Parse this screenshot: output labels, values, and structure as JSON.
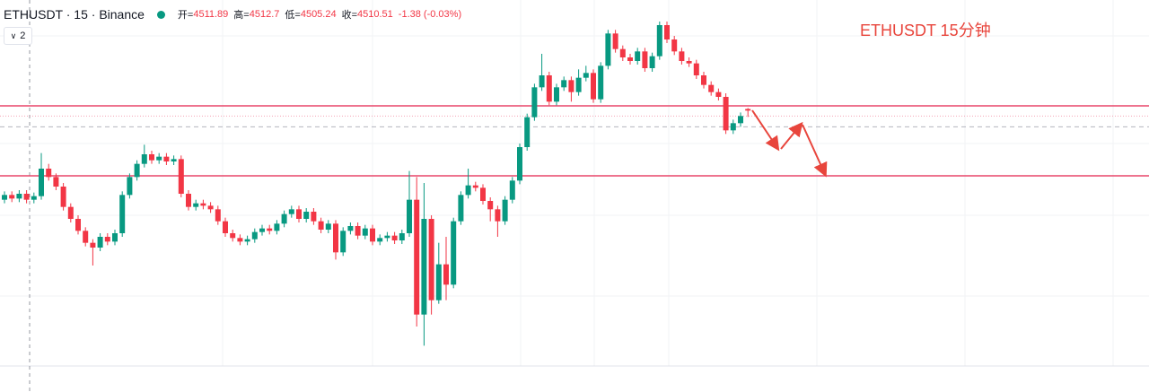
{
  "header": {
    "symbol": "ETHUSDT · 15 · Binance",
    "open_label": "开=",
    "high_label": "高=",
    "low_label": "低=",
    "close_label": "收=",
    "change": "-1.38 (-0.03%)",
    "collapse": "2"
  },
  "chart_data": {
    "type": "candlestick",
    "annotation": "ETHUSDT 15分钟",
    "ylim": [
      4297,
      4603
    ],
    "up_color": "#089981",
    "down_color": "#f23645",
    "open": [
      4436,
      4440,
      4437,
      4441,
      4436,
      4439,
      4462,
      4455,
      4447,
      4430,
      4420,
      4410,
      4400,
      4396,
      4405,
      4401,
      4408,
      4440,
      4455,
      4466,
      4474,
      4469,
      4472,
      4468,
      4470,
      4441,
      4430,
      4433,
      4431,
      4428,
      4418,
      4408,
      4404,
      4401,
      4403,
      4409,
      4412,
      4410,
      4416,
      4424,
      4428,
      4420,
      4426,
      4418,
      4411,
      4416,
      4392,
      4410,
      4414,
      4406,
      4412,
      4401,
      4404,
      4406,
      4402,
      4408,
      4436,
      4340,
      4420,
      4352,
      4382,
      4365,
      4418,
      4440,
      4448,
      4446,
      4435,
      4428,
      4418,
      4436,
      4452,
      4480,
      4505,
      4530,
      4540,
      4518,
      4530,
      4536,
      4526,
      4538,
      4542,
      4520,
      4548,
      4575,
      4562,
      4555,
      4552,
      4560,
      4546,
      4556,
      4582,
      4570,
      4560,
      4552,
      4550,
      4540,
      4532,
      4526,
      4522,
      4494,
      4500,
      4511.89
    ],
    "high": [
      4443,
      4443,
      4444,
      4444,
      4442,
      4475,
      4466,
      4458,
      4450,
      4433,
      4423,
      4413,
      4403,
      4408,
      4408,
      4411,
      4443,
      4458,
      4469,
      4482,
      4477,
      4475,
      4475,
      4473,
      4473,
      4444,
      4436,
      4436,
      4434,
      4431,
      4421,
      4411,
      4407,
      4406,
      4412,
      4415,
      4415,
      4419,
      4427,
      4431,
      4431,
      4429,
      4429,
      4421,
      4419,
      4419,
      4413,
      4417,
      4417,
      4415,
      4415,
      4407,
      4409,
      4409,
      4411,
      4460,
      4455,
      4450,
      4423,
      4400,
      4405,
      4421,
      4443,
      4462,
      4451,
      4449,
      4438,
      4431,
      4439,
      4455,
      4483,
      4508,
      4533,
      4558,
      4543,
      4533,
      4539,
      4539,
      4545,
      4548,
      4545,
      4551,
      4578,
      4578,
      4565,
      4558,
      4563,
      4563,
      4559,
      4585,
      4585,
      4573,
      4563,
      4555,
      4553,
      4543,
      4535,
      4529,
      4525,
      4503,
      4509,
      4512.7
    ],
    "low": [
      4433,
      4434,
      4434,
      4433,
      4433,
      4436,
      4452,
      4444,
      4427,
      4417,
      4407,
      4397,
      4381,
      4393,
      4398,
      4398,
      4405,
      4437,
      4452,
      4463,
      4466,
      4466,
      4465,
      4465,
      4438,
      4427,
      4427,
      4428,
      4425,
      4415,
      4405,
      4401,
      4398,
      4398,
      4400,
      4406,
      4407,
      4407,
      4413,
      4421,
      4417,
      4417,
      4415,
      4408,
      4408,
      4386,
      4389,
      4407,
      4403,
      4403,
      4398,
      4398,
      4401,
      4399,
      4399,
      4405,
      4330,
      4314,
      4340,
      4349,
      4352,
      4362,
      4415,
      4437,
      4443,
      4432,
      4418,
      4405,
      4415,
      4433,
      4449,
      4477,
      4502,
      4527,
      4515,
      4515,
      4527,
      4518,
      4523,
      4535,
      4517,
      4517,
      4545,
      4559,
      4552,
      4549,
      4549,
      4543,
      4543,
      4553,
      4567,
      4557,
      4549,
      4547,
      4537,
      4529,
      4523,
      4519,
      4491,
      4491,
      4497,
      4505.24
    ],
    "close": [
      4440,
      4437,
      4441,
      4436,
      4439,
      4462,
      4455,
      4447,
      4430,
      4420,
      4410,
      4400,
      4396,
      4405,
      4401,
      4408,
      4440,
      4455,
      4466,
      4474,
      4469,
      4472,
      4468,
      4470,
      4441,
      4430,
      4433,
      4431,
      4428,
      4418,
      4408,
      4404,
      4401,
      4403,
      4409,
      4412,
      4410,
      4416,
      4424,
      4428,
      4420,
      4426,
      4418,
      4411,
      4416,
      4392,
      4410,
      4414,
      4406,
      4412,
      4401,
      4404,
      4406,
      4402,
      4408,
      4436,
      4340,
      4420,
      4352,
      4382,
      4365,
      4418,
      4440,
      4448,
      4446,
      4435,
      4428,
      4418,
      4436,
      4452,
      4480,
      4505,
      4530,
      4540,
      4518,
      4530,
      4536,
      4526,
      4538,
      4542,
      4520,
      4548,
      4575,
      4562,
      4555,
      4552,
      4560,
      4546,
      4556,
      4582,
      4570,
      4560,
      4552,
      4550,
      4540,
      4532,
      4526,
      4522,
      4494,
      4500,
      4506,
      4510.51
    ],
    "levels": [
      {
        "value": 4514.5,
        "color": "#e8476a",
        "style": "solid"
      },
      {
        "value": 4456,
        "color": "#e8476a",
        "style": "solid"
      },
      {
        "value": 4506,
        "color": "#f4a3b5",
        "style": "dotted"
      },
      {
        "value": 4497,
        "color": "#b2b5be",
        "style": "dashed"
      }
    ]
  }
}
